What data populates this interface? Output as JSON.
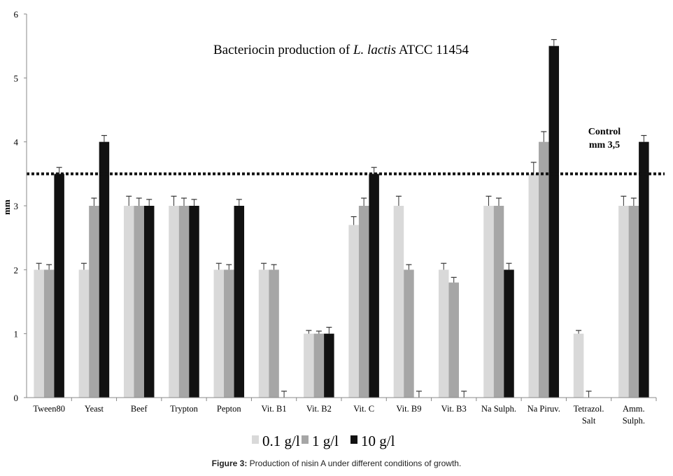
{
  "chart_data": {
    "type": "bar",
    "title_prefix": "Bacteriocin production of ",
    "title_italic": "L. lactis",
    "title_suffix": " ATCC 11454",
    "title": "Bacteriocin production of L. lactis ATCC 11454",
    "ylabel": "mm",
    "xlabel": "",
    "ylim": [
      0,
      6
    ],
    "yticks": [
      "0",
      "1",
      "2",
      "3",
      "4",
      "5",
      "6"
    ],
    "categories": [
      "Tween80",
      "Yeast",
      "Beef",
      "Trypton",
      "Pepton",
      "Vit. B1",
      "Vit. B2",
      "Vit. C",
      "Vit. B9",
      "Vit. B3",
      "Na Sulph.",
      "Na Piruv.",
      "Tetrazol.\nSalt",
      "Amm.\nSulph."
    ],
    "series": [
      {
        "name": "0.1 g/l",
        "color": "#d9d9d9",
        "values": [
          2,
          2,
          3,
          3,
          2,
          2,
          1,
          2.7,
          3,
          2,
          3,
          3.5,
          1,
          3
        ],
        "errors": [
          0.1,
          0.1,
          0.15,
          0.15,
          0.1,
          0.1,
          0.05,
          0.13,
          0.15,
          0.1,
          0.15,
          0.18,
          0.05,
          0.15
        ]
      },
      {
        "name": "1 g/l",
        "color": "#a6a6a6",
        "values": [
          2,
          3,
          3,
          3,
          2,
          2,
          1,
          3,
          2,
          1.8,
          3,
          4,
          0,
          3
        ],
        "errors": [
          0.08,
          0.12,
          0.12,
          0.12,
          0.08,
          0.08,
          0.04,
          0.12,
          0.08,
          0.08,
          0.12,
          0.16,
          0.1,
          0.12
        ]
      },
      {
        "name": "10 g/l",
        "color": "#111111",
        "values": [
          3.5,
          4,
          3,
          3,
          3,
          0,
          1,
          3.5,
          0,
          0,
          2,
          5.5,
          0,
          4
        ],
        "errors": [
          0.1,
          0.1,
          0.1,
          0.1,
          0.1,
          0.1,
          0.1,
          0.1,
          0.1,
          0.1,
          0.1,
          0.1,
          0,
          0.1
        ]
      }
    ],
    "reference_line": {
      "value": 3.5,
      "label_line1": "Control",
      "label_line2": "mm 3,5",
      "style": "dotted"
    },
    "legend_placement": "bottom",
    "grid": false
  },
  "caption": {
    "label": "Figure 3:",
    "text": " Production of nisin A under different conditions of growth."
  }
}
